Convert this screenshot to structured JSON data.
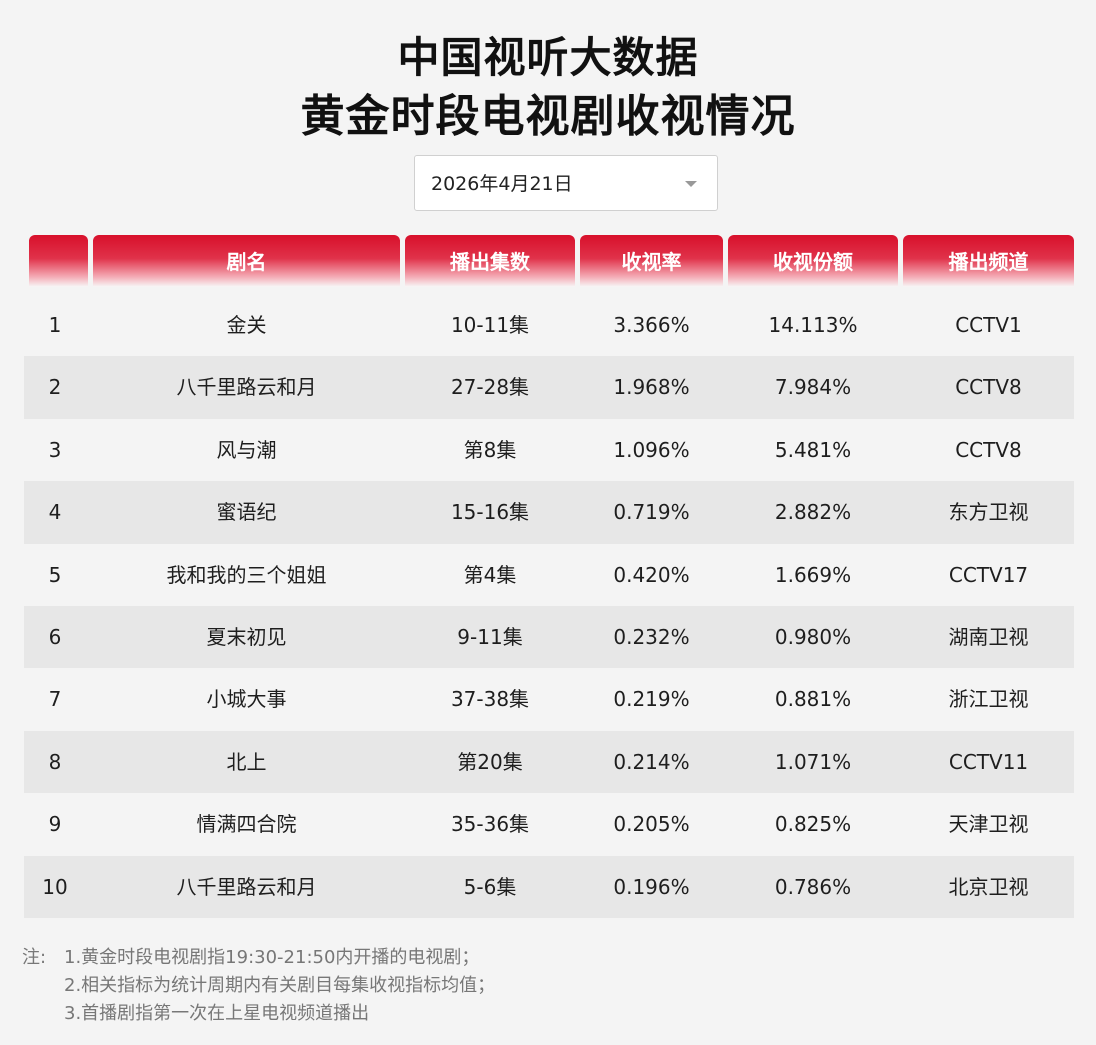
{
  "title_line1": "中国视听大数据",
  "title_line2": "黄金时段电视剧收视情况",
  "date_select": {
    "value": "2026年4月21日"
  },
  "headers": [
    "",
    "剧名",
    "播出集数",
    "收视率",
    "收视份额",
    "播出频道"
  ],
  "rows": [
    [
      "1",
      "金关",
      "10-11集",
      "3.366%",
      "14.113%",
      "CCTV1"
    ],
    [
      "2",
      "八千里路云和月",
      "27-28集",
      "1.968%",
      "7.984%",
      "CCTV8"
    ],
    [
      "3",
      "风与潮",
      "第8集",
      "1.096%",
      "5.481%",
      "CCTV8"
    ],
    [
      "4",
      "蜜语纪",
      "15-16集",
      "0.719%",
      "2.882%",
      "东方卫视"
    ],
    [
      "5",
      "我和我的三个姐姐",
      "第4集",
      "0.420%",
      "1.669%",
      "CCTV17"
    ],
    [
      "6",
      "夏末初见",
      "9-11集",
      "0.232%",
      "0.980%",
      "湖南卫视"
    ],
    [
      "7",
      "小城大事",
      "37-38集",
      "0.219%",
      "0.881%",
      "浙江卫视"
    ],
    [
      "8",
      "北上",
      "第20集",
      "0.214%",
      "1.071%",
      "CCTV11"
    ],
    [
      "9",
      "情满四合院",
      "35-36集",
      "0.205%",
      "0.825%",
      "天津卫视"
    ],
    [
      "10",
      "八千里路云和月",
      "5-6集",
      "0.196%",
      "0.786%",
      "北京卫视"
    ]
  ],
  "notes": {
    "prefix": "注:",
    "lines": [
      "1.黄金时段电视剧指19:30-21:50内开播的电视剧；",
      "2.相关指标为统计周期内有关剧目每集收视指标均值；",
      "3.首播剧指第一次在上星电视频道播出"
    ]
  },
  "colors": {
    "header_red": "#d8102b",
    "row_alt": "#e7e7e7",
    "background": "#f4f4f4"
  }
}
